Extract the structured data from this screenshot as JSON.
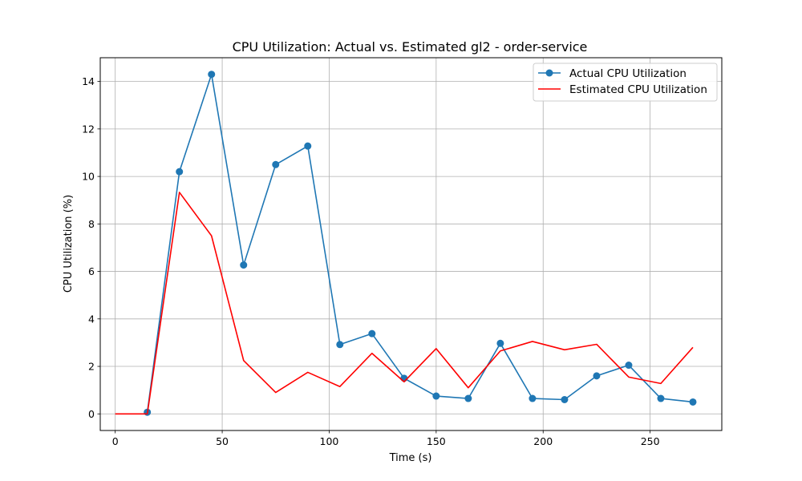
{
  "chart_data": {
    "type": "line",
    "title": "CPU Utilization: Actual vs. Estimated gl2 - order-service",
    "xlabel": "Time (s)",
    "ylabel": "CPU Utilization (%)",
    "xlim": [
      -7,
      283.5
    ],
    "ylim": [
      -0.7,
      15.0
    ],
    "xticks": [
      0,
      50,
      100,
      150,
      200,
      250
    ],
    "yticks": [
      0,
      2,
      4,
      6,
      8,
      10,
      12,
      14
    ],
    "grid": true,
    "legend_position": "top-right",
    "series": [
      {
        "name": "Actual CPU Utilization",
        "color": "#1f77b4",
        "marker": "circle",
        "x": [
          15,
          30,
          45,
          60,
          75,
          90,
          105,
          120,
          135,
          150,
          165,
          180,
          195,
          210,
          225,
          240,
          255,
          270
        ],
        "y": [
          0.07,
          10.2,
          14.3,
          6.27,
          10.5,
          11.28,
          2.92,
          3.38,
          1.5,
          0.75,
          0.65,
          2.97,
          0.65,
          0.6,
          1.6,
          2.05,
          0.65,
          0.5
        ]
      },
      {
        "name": "Estimated CPU Utilization",
        "color": "#ff0000",
        "marker": "none",
        "x": [
          0,
          15,
          30,
          45,
          60,
          75,
          90,
          105,
          120,
          135,
          150,
          165,
          180,
          195,
          210,
          225,
          240,
          255,
          270
        ],
        "y": [
          0,
          0,
          9.33,
          7.5,
          2.25,
          0.9,
          1.75,
          1.15,
          2.55,
          1.35,
          2.75,
          1.1,
          2.65,
          3.05,
          2.7,
          2.93,
          1.55,
          1.28,
          2.8
        ]
      }
    ]
  }
}
